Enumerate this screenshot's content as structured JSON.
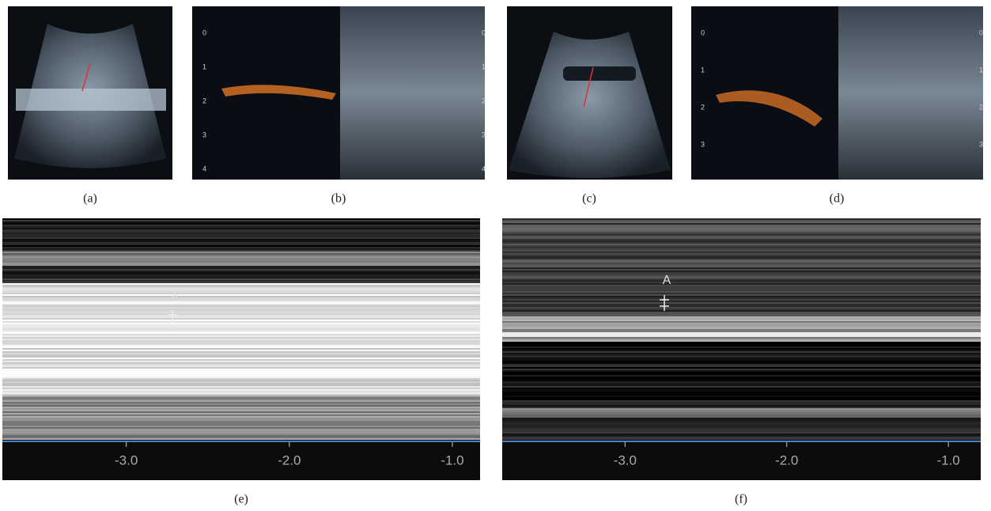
{
  "figure": {
    "panels": [
      {
        "label": "(a)"
      },
      {
        "label": "(b)",
        "depth_ticks": [
          0,
          1,
          2,
          3,
          4
        ]
      },
      {
        "label": "(c)"
      },
      {
        "label": "(d)",
        "depth_ticks": [
          0,
          1,
          2,
          3
        ]
      },
      {
        "label": "(e)",
        "annotation": "A",
        "xlim": [
          -3.76,
          -0.83
        ],
        "xticks": [
          {
            "value": -3,
            "label": "-3.0"
          },
          {
            "value": -2,
            "label": "-2.0"
          },
          {
            "value": -1,
            "label": "-1.0"
          }
        ]
      },
      {
        "label": "(f)",
        "annotation": "A",
        "xlim": [
          -3.76,
          -0.8
        ],
        "xticks": [
          {
            "value": -3,
            "label": "-3.0"
          },
          {
            "value": -2,
            "label": "-2.0"
          },
          {
            "value": -1,
            "label": "-1.0"
          }
        ]
      }
    ]
  }
}
